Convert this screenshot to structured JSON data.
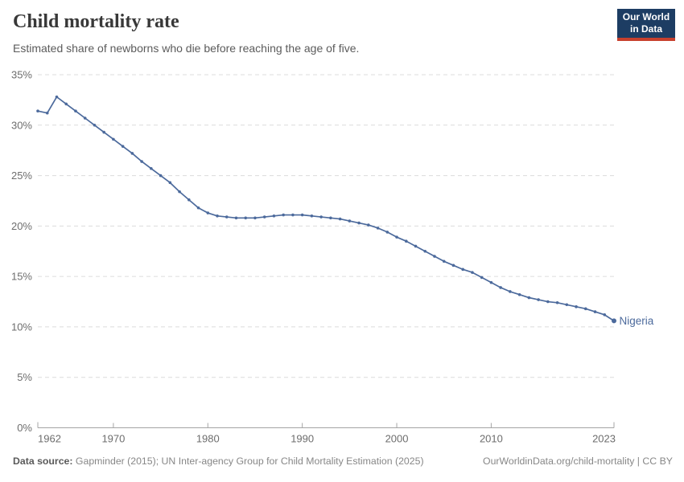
{
  "header": {
    "title": "Child mortality rate",
    "subtitle": "Estimated share of newborns who die before reaching the age of five.",
    "logo": {
      "line1": "Our World",
      "line2": "in Data",
      "bg_color": "#1d3d63",
      "accent_color": "#c7402d"
    }
  },
  "chart_data": {
    "type": "line",
    "title": "Child mortality rate",
    "subtitle": "Estimated share of newborns who die before reaching the age of five.",
    "unit": "%",
    "grid": "horizontal-dashed",
    "legend": "end-of-line-label",
    "xlim": [
      1962,
      2023
    ],
    "ylim": [
      0,
      35
    ],
    "x_tick_values": [
      1962,
      1970,
      1980,
      1990,
      2000,
      2010,
      2023
    ],
    "x_tick_labels": [
      "1962",
      "1970",
      "1980",
      "1990",
      "2000",
      "2010",
      "2023"
    ],
    "y_tick_values": [
      0,
      5,
      10,
      15,
      20,
      25,
      30,
      35
    ],
    "y_tick_labels": [
      "0%",
      "5%",
      "10%",
      "15%",
      "20%",
      "25%",
      "30%",
      "35%"
    ],
    "x": [
      1962,
      1963,
      1964,
      1965,
      1966,
      1967,
      1968,
      1969,
      1970,
      1971,
      1972,
      1973,
      1974,
      1975,
      1976,
      1977,
      1978,
      1979,
      1980,
      1981,
      1982,
      1983,
      1984,
      1985,
      1986,
      1987,
      1988,
      1989,
      1990,
      1991,
      1992,
      1993,
      1994,
      1995,
      1996,
      1997,
      1998,
      1999,
      2000,
      2001,
      2002,
      2003,
      2004,
      2005,
      2006,
      2007,
      2008,
      2009,
      2010,
      2011,
      2012,
      2013,
      2014,
      2015,
      2016,
      2017,
      2018,
      2019,
      2020,
      2021,
      2022,
      2023
    ],
    "series": [
      {
        "name": "Nigeria",
        "color": "#4C6A9C",
        "values": [
          31.4,
          31.2,
          32.8,
          32.1,
          31.4,
          30.7,
          30.0,
          29.3,
          28.6,
          27.9,
          27.2,
          26.4,
          25.7,
          25.0,
          24.3,
          23.4,
          22.6,
          21.8,
          21.3,
          21.0,
          20.9,
          20.8,
          20.8,
          20.8,
          20.9,
          21.0,
          21.1,
          21.1,
          21.1,
          21.0,
          20.9,
          20.8,
          20.7,
          20.5,
          20.3,
          20.1,
          19.8,
          19.4,
          18.9,
          18.5,
          18.0,
          17.5,
          17.0,
          16.5,
          16.1,
          15.7,
          15.4,
          14.9,
          14.4,
          13.9,
          13.5,
          13.2,
          12.9,
          12.7,
          12.5,
          12.4,
          12.2,
          12.0,
          11.8,
          11.5,
          11.2,
          10.6
        ]
      }
    ]
  },
  "footer": {
    "source_label": "Data source:",
    "source_text": " Gapminder (2015); UN Inter-agency Group for Child Mortality Estimation (2025)",
    "link_text": "OurWorldinData.org/child-mortality | CC BY"
  }
}
